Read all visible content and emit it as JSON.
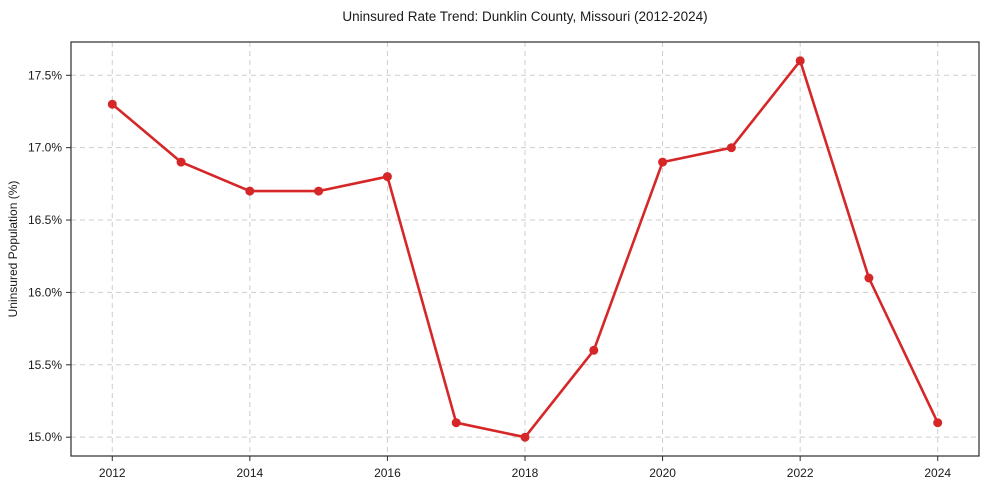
{
  "chart_data": {
    "type": "line",
    "title": "Uninsured Rate Trend: Dunklin County, Missouri (2012-2024)",
    "xlabel": "",
    "ylabel": "Uninsured Population (%)",
    "x": [
      2012,
      2013,
      2014,
      2015,
      2016,
      2017,
      2018,
      2019,
      2020,
      2021,
      2022,
      2023,
      2024
    ],
    "values": [
      17.3,
      16.9,
      16.7,
      16.7,
      16.8,
      15.1,
      15.0,
      15.6,
      16.9,
      17.0,
      17.6,
      16.1,
      15.1
    ],
    "xlim": [
      2011.4,
      2024.6
    ],
    "ylim": [
      14.87,
      17.73
    ],
    "x_ticks": [
      2012,
      2014,
      2016,
      2018,
      2020,
      2022,
      2024
    ],
    "x_tick_labels": [
      "2012",
      "2014",
      "2016",
      "2018",
      "2020",
      "2022",
      "2024"
    ],
    "y_ticks": [
      15.0,
      15.5,
      16.0,
      16.5,
      17.0,
      17.5
    ],
    "y_tick_labels": [
      "15.0%",
      "15.5%",
      "16.0%",
      "16.5%",
      "17.0%",
      "17.5%"
    ],
    "grid": true,
    "grid_style": "dashed",
    "legend_position": "none",
    "marker": "circle"
  },
  "style": {
    "background": "#ffffff",
    "line_color": "#d62728",
    "marker_color": "#d62728",
    "grid_color": "#cdcdcd",
    "spine_color": "#2b2b2b",
    "tick_color": "#2b2b2b",
    "text_color": "#1a1a1a"
  }
}
